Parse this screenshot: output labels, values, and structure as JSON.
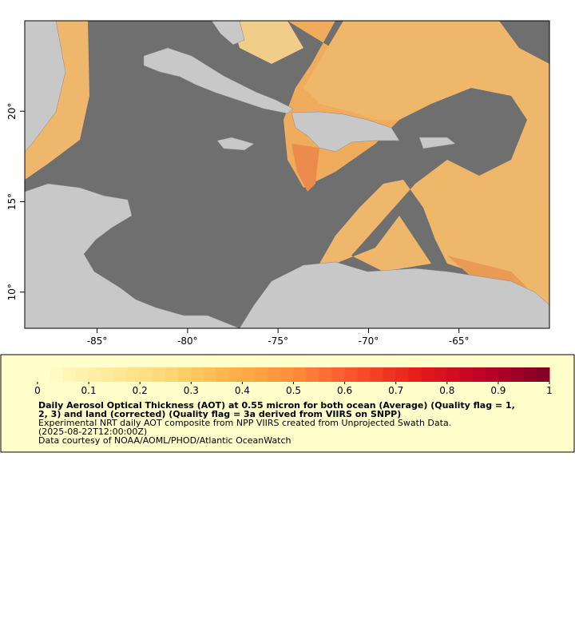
{
  "map": {
    "xlim": [
      -89,
      -60
    ],
    "ylim": [
      8,
      25
    ],
    "xticks": [
      {
        "value": -85,
        "label": "-85°"
      },
      {
        "value": -80,
        "label": "-80°"
      },
      {
        "value": -75,
        "label": "-75°"
      },
      {
        "value": -70,
        "label": "-70°"
      },
      {
        "value": -65,
        "label": "-65°"
      }
    ],
    "yticks": [
      {
        "value": 10,
        "label": "10°"
      },
      {
        "value": 15,
        "label": "15°"
      },
      {
        "value": 20,
        "label": "20°"
      }
    ]
  },
  "colorbar": {
    "lim": [
      0,
      1
    ],
    "ticks": [
      0,
      0.1,
      0.2,
      0.3,
      0.4,
      0.5,
      0.6,
      0.7,
      0.8,
      0.9,
      1
    ]
  },
  "legend": {
    "title_lines": [
      "Daily Aerosol Optical Thickness (AOT) at 0.55 micron for both ocean (Average) (Quality flag = 1,",
      "2, 3) and land (corrected) (Quality flag = 3a derived from VIIRS on SNPP)"
    ],
    "lines": [
      "Experimental NRT daily AOT composite from NPP VIIRS created from Unprojected Swath Data.",
      "(2025-08-22T12:00:00Z)",
      "Data courtesy of NOAA/AOML/PHOD/Atlantic OceanWatch"
    ]
  }
}
